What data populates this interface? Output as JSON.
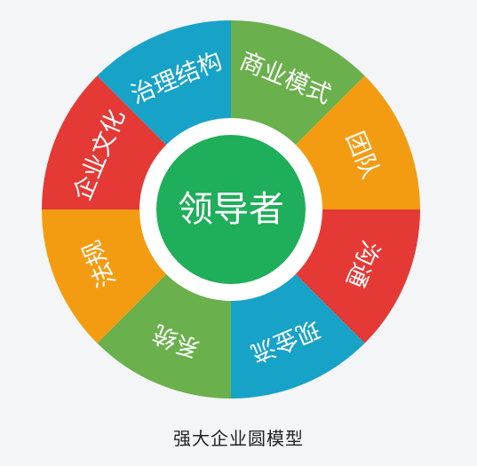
{
  "diagram": {
    "center_label": "领导者",
    "center_color": "#1fae5a",
    "ring_color": "#ffffff",
    "caption": "强大企业圆模型",
    "segments": [
      {
        "label": "商业模式",
        "color": "#6ab04c"
      },
      {
        "label": "团队",
        "color": "#f39c12"
      },
      {
        "label": "沟通",
        "color": "#e53935"
      },
      {
        "label": "现金流",
        "color": "#17a2c8"
      },
      {
        "label": "系统",
        "color": "#6ab04c"
      },
      {
        "label": "法规",
        "color": "#f39c12"
      },
      {
        "label": "企业文化",
        "color": "#e53935"
      },
      {
        "label": "治理结构",
        "color": "#17a2c8"
      }
    ]
  }
}
